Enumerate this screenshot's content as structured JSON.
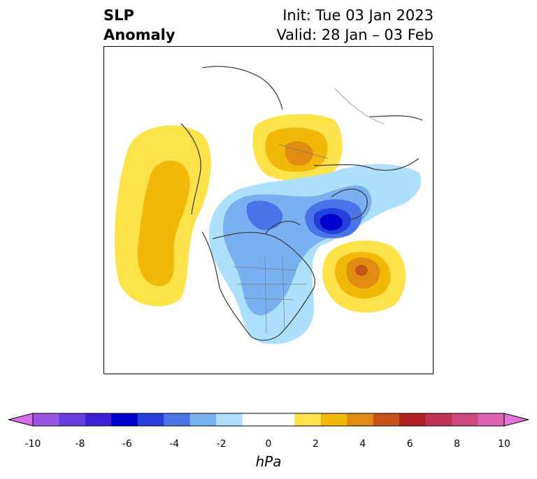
{
  "title": {
    "left_line1": "SLP",
    "left_line2": "Anomaly",
    "right_line1": "Init: Tue 03 Jan 2023",
    "right_line2": "Valid: 28 Jan – 03 Feb"
  },
  "colorbar": {
    "unit": "hPa",
    "ticks": [
      "-10",
      "-8",
      "-6",
      "-4",
      "-2",
      "0",
      "2",
      "4",
      "6",
      "8",
      "10"
    ],
    "colors": [
      "#d86ee6",
      "#9b55e2",
      "#6a3ddf",
      "#3d1fd6",
      "#0000cd",
      "#2340dc",
      "#4a74e8",
      "#78b0f2",
      "#ace0fc",
      "#ffffff",
      "#ffffff",
      "#fde24a",
      "#f1b80a",
      "#e08c10",
      "#c85418",
      "#b22222",
      "#c13352",
      "#cf4a7e",
      "#dc62b2",
      "#e774d8"
    ]
  }
}
